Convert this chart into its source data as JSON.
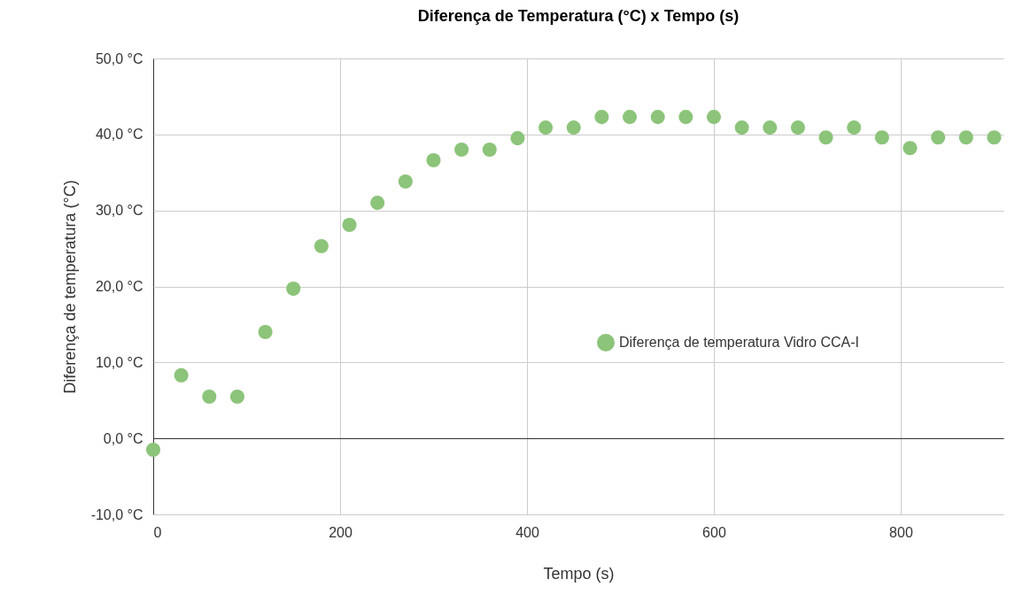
{
  "chart_data": {
    "type": "scatter",
    "title": "Diferença de Temperatura (°C) x Tempo (s)",
    "xlabel": "Tempo (s)",
    "ylabel": "Diferença de temperatura (°C)",
    "x": [
      0,
      30,
      60,
      90,
      120,
      150,
      180,
      210,
      240,
      270,
      300,
      330,
      360,
      390,
      420,
      450,
      480,
      510,
      540,
      570,
      600,
      630,
      660,
      690,
      720,
      750,
      780,
      810,
      840,
      870,
      900
    ],
    "series": [
      {
        "name": "Diferença de temperatura Vidro CCA-I",
        "color": "#8cc47a",
        "values": [
          -1.5,
          8.3,
          5.5,
          5.5,
          14.0,
          19.7,
          25.3,
          28.1,
          31.0,
          33.8,
          36.6,
          38.0,
          38.0,
          39.5,
          40.9,
          40.9,
          42.3,
          42.3,
          42.3,
          42.3,
          42.3,
          40.9,
          40.9,
          40.9,
          39.6,
          40.9,
          39.6,
          38.2,
          39.6,
          39.6,
          39.6
        ]
      }
    ],
    "xlim": [
      0,
      910
    ],
    "xticks": [
      0,
      200,
      400,
      600,
      800
    ],
    "ylim": [
      -10,
      50
    ],
    "yticks": [
      {
        "value": -10,
        "label": "-10,0 °C"
      },
      {
        "value": 0,
        "label": "0,0 °C"
      },
      {
        "value": 10,
        "label": "10,0 °C"
      },
      {
        "value": 20,
        "label": "20,0 °C"
      },
      {
        "value": 30,
        "label": "30,0 °C"
      },
      {
        "value": 40,
        "label": "40,0 °C"
      },
      {
        "value": 50,
        "label": "50,0 °C"
      }
    ],
    "grid": true,
    "legend": "right",
    "marker": "circle"
  }
}
